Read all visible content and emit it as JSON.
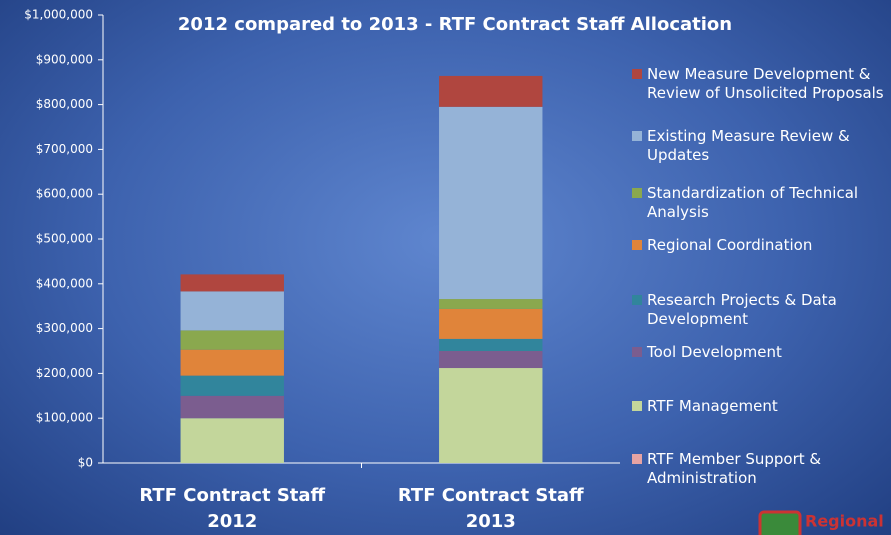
{
  "chart_data": {
    "type": "stacked_bar",
    "title": "2012 compared to 2013 - RTF Contract Staff Allocation",
    "categories": [
      "RTF Contract Staff 2012",
      "RTF Contract Staff 2013"
    ],
    "series": [
      {
        "name": "RTF Member Support & Administration",
        "color": "#e6a3a3",
        "values": [
          0,
          0
        ]
      },
      {
        "name": "RTF Management",
        "color": "#c3d69b",
        "values": [
          100000,
          212000
        ]
      },
      {
        "name": "Tool Development",
        "color": "#7b5d8f",
        "values": [
          50000,
          38000
        ]
      },
      {
        "name": "Research Projects & Data Development",
        "color": "#31859c",
        "values": [
          45000,
          27000
        ]
      },
      {
        "name": "Regional Coordination",
        "color": "#e0843a",
        "values": [
          58000,
          67000
        ]
      },
      {
        "name": "Standardization of Technical Analysis",
        "color": "#8aa84e",
        "values": [
          43000,
          22000
        ]
      },
      {
        "name": "Existing Measure Review & Updates",
        "color": "#95b3d7",
        "values": [
          87000,
          429000
        ]
      },
      {
        "name": "New Measure Development & Review of Unsolicited Proposals",
        "color": "#b0463f",
        "values": [
          38000,
          69000
        ]
      }
    ],
    "ylim": [
      0,
      1000000
    ],
    "yticks": [
      {
        "value": 0,
        "label": "$0"
      },
      {
        "value": 100000,
        "label": "$100,000"
      },
      {
        "value": 200000,
        "label": "$200,000"
      },
      {
        "value": 300000,
        "label": "$300,000"
      },
      {
        "value": 400000,
        "label": "$400,000"
      },
      {
        "value": 500000,
        "label": "$500,000"
      },
      {
        "value": 600000,
        "label": "$600,000"
      },
      {
        "value": 700000,
        "label": "$700,000"
      },
      {
        "value": 800000,
        "label": "$800,000"
      },
      {
        "value": 900000,
        "label": "$900,000"
      },
      {
        "value": 1000000,
        "label": "$1,000,000"
      }
    ],
    "legend": "right",
    "logo_text": "Regional"
  }
}
